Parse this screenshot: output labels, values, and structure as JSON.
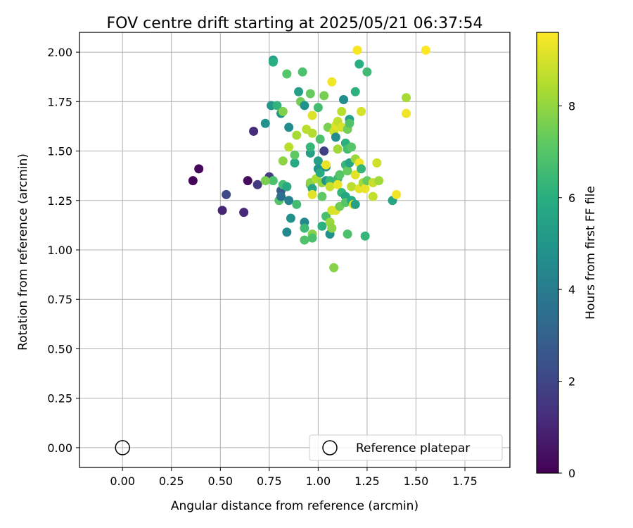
{
  "chart_data": {
    "type": "scatter",
    "title": "FOV centre drift starting at 2025/05/21 06:37:54",
    "xlabel": "Angular distance from reference (arcmin)",
    "ylabel": "Rotation from reference (arcmin)",
    "xlim": [
      -0.22,
      1.98
    ],
    "ylim": [
      -0.1,
      2.1
    ],
    "xticks": [
      0.0,
      0.25,
      0.5,
      0.75,
      1.0,
      1.25,
      1.5,
      1.75
    ],
    "xtick_labels": [
      "0.00",
      "0.25",
      "0.50",
      "0.75",
      "1.00",
      "1.25",
      "1.50",
      "1.75"
    ],
    "yticks": [
      0.0,
      0.25,
      0.5,
      0.75,
      1.0,
      1.25,
      1.5,
      1.75,
      2.0
    ],
    "ytick_labels": [
      "0.00",
      "0.25",
      "0.50",
      "0.75",
      "1.00",
      "1.25",
      "1.50",
      "1.75",
      "2.00"
    ],
    "grid": true,
    "legend": {
      "placement": "lower-right",
      "entries": [
        {
          "label": "Reference platepar",
          "marker": "open-circle"
        }
      ]
    },
    "reference_point": {
      "x": 0.0,
      "y": 0.0,
      "label": "Reference platepar"
    },
    "colorbar": {
      "label": "Hours from first FF file",
      "colormap": "viridis",
      "range": [
        0,
        9.6
      ],
      "ticks": [
        0,
        2,
        4,
        6,
        8
      ],
      "tick_labels": [
        "0",
        "2",
        "4",
        "6",
        "8"
      ]
    },
    "points": [
      {
        "x": 0.36,
        "y": 1.35,
        "h": 0.1
      },
      {
        "x": 0.39,
        "y": 1.41,
        "h": 0.2
      },
      {
        "x": 0.51,
        "y": 1.2,
        "h": 1.0
      },
      {
        "x": 0.53,
        "y": 1.28,
        "h": 2.2
      },
      {
        "x": 0.62,
        "y": 1.19,
        "h": 1.1
      },
      {
        "x": 0.64,
        "y": 1.35,
        "h": 0.3
      },
      {
        "x": 0.67,
        "y": 1.6,
        "h": 1.2
      },
      {
        "x": 0.69,
        "y": 1.33,
        "h": 1.6
      },
      {
        "x": 0.73,
        "y": 1.64,
        "h": 4.8
      },
      {
        "x": 0.75,
        "y": 1.37,
        "h": 1.8
      },
      {
        "x": 0.76,
        "y": 1.73,
        "h": 5.0
      },
      {
        "x": 0.77,
        "y": 1.96,
        "h": 5.2
      },
      {
        "x": 0.77,
        "y": 1.95,
        "h": 6.0
      },
      {
        "x": 0.79,
        "y": 1.73,
        "h": 6.2
      },
      {
        "x": 0.77,
        "y": 1.35,
        "h": 6.8
      },
      {
        "x": 0.73,
        "y": 1.35,
        "h": 7.6
      },
      {
        "x": 0.8,
        "y": 1.25,
        "h": 7.0
      },
      {
        "x": 0.81,
        "y": 1.3,
        "h": 2.8
      },
      {
        "x": 0.81,
        "y": 1.27,
        "h": 3.5
      },
      {
        "x": 0.82,
        "y": 1.33,
        "h": 6.6
      },
      {
        "x": 0.81,
        "y": 1.69,
        "h": 5.0
      },
      {
        "x": 0.82,
        "y": 1.7,
        "h": 7.7
      },
      {
        "x": 0.82,
        "y": 1.45,
        "h": 7.9
      },
      {
        "x": 0.84,
        "y": 1.32,
        "h": 5.8
      },
      {
        "x": 0.85,
        "y": 1.62,
        "h": 4.6
      },
      {
        "x": 0.84,
        "y": 1.09,
        "h": 4.5
      },
      {
        "x": 0.85,
        "y": 1.25,
        "h": 4.2
      },
      {
        "x": 0.84,
        "y": 1.89,
        "h": 7.0
      },
      {
        "x": 0.85,
        "y": 1.52,
        "h": 8.6
      },
      {
        "x": 0.86,
        "y": 1.16,
        "h": 4.8
      },
      {
        "x": 0.88,
        "y": 1.44,
        "h": 5.8
      },
      {
        "x": 0.88,
        "y": 1.48,
        "h": 7.2
      },
      {
        "x": 0.89,
        "y": 1.58,
        "h": 8.3
      },
      {
        "x": 0.89,
        "y": 1.23,
        "h": 6.6
      },
      {
        "x": 0.9,
        "y": 1.8,
        "h": 5.4
      },
      {
        "x": 0.91,
        "y": 1.75,
        "h": 7.5
      },
      {
        "x": 0.92,
        "y": 1.9,
        "h": 6.8
      },
      {
        "x": 0.93,
        "y": 1.73,
        "h": 4.8
      },
      {
        "x": 0.93,
        "y": 1.14,
        "h": 4.5
      },
      {
        "x": 0.93,
        "y": 1.05,
        "h": 6.9
      },
      {
        "x": 0.93,
        "y": 1.11,
        "h": 6.5
      },
      {
        "x": 0.94,
        "y": 1.61,
        "h": 8.6
      },
      {
        "x": 0.96,
        "y": 1.79,
        "h": 7.3
      },
      {
        "x": 0.96,
        "y": 1.49,
        "h": 5.4
      },
      {
        "x": 0.96,
        "y": 1.52,
        "h": 6.3
      },
      {
        "x": 0.97,
        "y": 1.59,
        "h": 8.5
      },
      {
        "x": 0.97,
        "y": 1.68,
        "h": 9.1
      },
      {
        "x": 0.96,
        "y": 1.33,
        "h": 6.6
      },
      {
        "x": 0.96,
        "y": 1.34,
        "h": 7.9
      },
      {
        "x": 0.97,
        "y": 1.31,
        "h": 5.6
      },
      {
        "x": 0.97,
        "y": 1.28,
        "h": 9.2
      },
      {
        "x": 0.97,
        "y": 1.08,
        "h": 7.8
      },
      {
        "x": 0.97,
        "y": 1.06,
        "h": 6.8
      },
      {
        "x": 0.99,
        "y": 1.36,
        "h": 8.4
      },
      {
        "x": 1.0,
        "y": 1.72,
        "h": 6.6
      },
      {
        "x": 1.0,
        "y": 1.45,
        "h": 5.4
      },
      {
        "x": 1.0,
        "y": 1.41,
        "h": 4.9
      },
      {
        "x": 1.01,
        "y": 1.56,
        "h": 6.8
      },
      {
        "x": 1.01,
        "y": 1.39,
        "h": 5.8
      },
      {
        "x": 1.02,
        "y": 1.34,
        "h": 8.0
      },
      {
        "x": 1.02,
        "y": 1.27,
        "h": 7.2
      },
      {
        "x": 1.03,
        "y": 1.78,
        "h": 7.6
      },
      {
        "x": 1.02,
        "y": 1.12,
        "h": 6.1
      },
      {
        "x": 1.03,
        "y": 1.5,
        "h": 1.8
      },
      {
        "x": 1.04,
        "y": 1.35,
        "h": 5.0
      },
      {
        "x": 1.04,
        "y": 1.42,
        "h": 4.6
      },
      {
        "x": 1.04,
        "y": 1.43,
        "h": 9.3
      },
      {
        "x": 1.05,
        "y": 1.62,
        "h": 7.6
      },
      {
        "x": 1.04,
        "y": 1.17,
        "h": 6.7
      },
      {
        "x": 1.06,
        "y": 1.08,
        "h": 4.8
      },
      {
        "x": 1.06,
        "y": 1.35,
        "h": 6.4
      },
      {
        "x": 1.06,
        "y": 1.14,
        "h": 8.1
      },
      {
        "x": 1.06,
        "y": 1.32,
        "h": 8.8
      },
      {
        "x": 1.07,
        "y": 1.85,
        "h": 9.4
      },
      {
        "x": 1.07,
        "y": 1.2,
        "h": 9.0
      },
      {
        "x": 1.07,
        "y": 1.11,
        "h": 7.9
      },
      {
        "x": 1.08,
        "y": 0.91,
        "h": 7.8
      },
      {
        "x": 1.08,
        "y": 1.6,
        "h": 8.9
      },
      {
        "x": 1.09,
        "y": 1.63,
        "h": 9.2
      },
      {
        "x": 1.09,
        "y": 1.57,
        "h": 4.6
      },
      {
        "x": 1.09,
        "y": 1.2,
        "h": 9.1
      },
      {
        "x": 1.1,
        "y": 1.65,
        "h": 8.7
      },
      {
        "x": 1.1,
        "y": 1.51,
        "h": 8.2
      },
      {
        "x": 1.1,
        "y": 1.36,
        "h": 6.5
      },
      {
        "x": 1.1,
        "y": 1.33,
        "h": 9.3
      },
      {
        "x": 1.11,
        "y": 1.22,
        "h": 7.4
      },
      {
        "x": 1.11,
        "y": 1.38,
        "h": 7.0
      },
      {
        "x": 1.12,
        "y": 1.29,
        "h": 6.3
      },
      {
        "x": 1.12,
        "y": 1.7,
        "h": 8.6
      },
      {
        "x": 1.12,
        "y": 1.62,
        "h": 9.0
      },
      {
        "x": 1.13,
        "y": 1.76,
        "h": 4.6
      },
      {
        "x": 1.14,
        "y": 1.54,
        "h": 6.1
      },
      {
        "x": 1.14,
        "y": 1.27,
        "h": 5.7
      },
      {
        "x": 1.14,
        "y": 1.24,
        "h": 7.0
      },
      {
        "x": 1.14,
        "y": 1.43,
        "h": 6.4
      },
      {
        "x": 1.15,
        "y": 1.61,
        "h": 7.5
      },
      {
        "x": 1.15,
        "y": 1.51,
        "h": 6.6
      },
      {
        "x": 1.15,
        "y": 1.4,
        "h": 7.3
      },
      {
        "x": 1.15,
        "y": 1.08,
        "h": 6.8
      },
      {
        "x": 1.16,
        "y": 1.44,
        "h": 5.6
      },
      {
        "x": 1.16,
        "y": 1.66,
        "h": 5.4
      },
      {
        "x": 1.16,
        "y": 1.64,
        "h": 6.9
      },
      {
        "x": 1.17,
        "y": 1.52,
        "h": 7.0
      },
      {
        "x": 1.17,
        "y": 1.32,
        "h": 8.6
      },
      {
        "x": 1.17,
        "y": 1.25,
        "h": 5.8
      },
      {
        "x": 1.18,
        "y": 1.23,
        "h": 8.9
      },
      {
        "x": 1.19,
        "y": 1.8,
        "h": 6.1
      },
      {
        "x": 1.19,
        "y": 1.46,
        "h": 8.1
      },
      {
        "x": 1.19,
        "y": 1.38,
        "h": 9.2
      },
      {
        "x": 1.19,
        "y": 1.23,
        "h": 5.4
      },
      {
        "x": 1.2,
        "y": 2.01,
        "h": 9.5
      },
      {
        "x": 1.21,
        "y": 1.94,
        "h": 6.0
      },
      {
        "x": 1.21,
        "y": 1.44,
        "h": 9.4
      },
      {
        "x": 1.21,
        "y": 1.31,
        "h": 9.2
      },
      {
        "x": 1.22,
        "y": 1.7,
        "h": 9.0
      },
      {
        "x": 1.22,
        "y": 1.41,
        "h": 6.3
      },
      {
        "x": 1.23,
        "y": 1.34,
        "h": 8.2
      },
      {
        "x": 1.24,
        "y": 1.07,
        "h": 6.3
      },
      {
        "x": 1.24,
        "y": 1.31,
        "h": 9.3
      },
      {
        "x": 1.25,
        "y": 1.35,
        "h": 7.3
      },
      {
        "x": 1.25,
        "y": 1.9,
        "h": 6.5
      },
      {
        "x": 1.28,
        "y": 1.34,
        "h": 8.8
      },
      {
        "x": 1.28,
        "y": 1.27,
        "h": 8.7
      },
      {
        "x": 1.3,
        "y": 1.44,
        "h": 8.9
      },
      {
        "x": 1.31,
        "y": 1.35,
        "h": 8.2
      },
      {
        "x": 1.38,
        "y": 1.25,
        "h": 5.6
      },
      {
        "x": 1.4,
        "y": 1.28,
        "h": 9.4
      },
      {
        "x": 1.45,
        "y": 1.77,
        "h": 8.3
      },
      {
        "x": 1.45,
        "y": 1.69,
        "h": 9.4
      },
      {
        "x": 1.55,
        "y": 2.01,
        "h": 9.6
      }
    ]
  }
}
